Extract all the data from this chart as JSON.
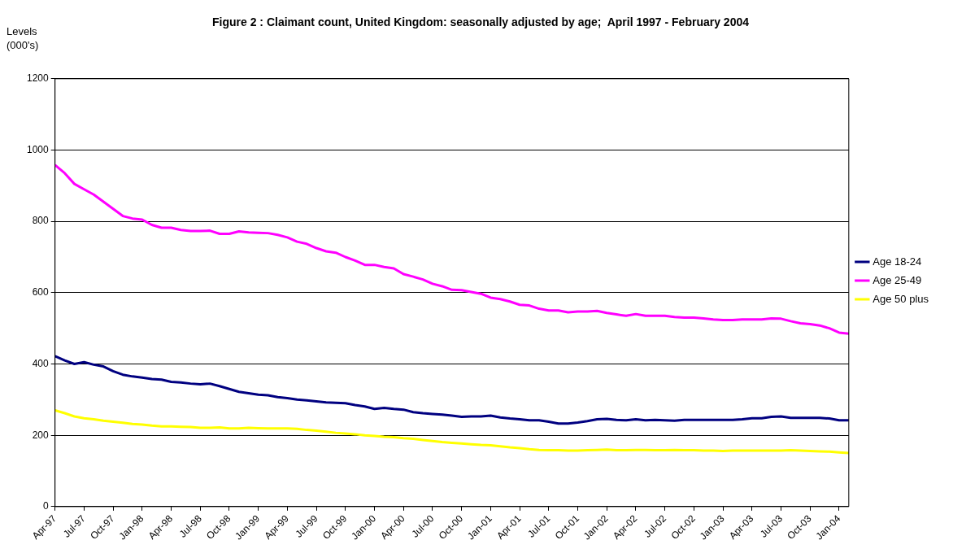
{
  "chart_data": {
    "type": "line",
    "title": "Figure 2 : Claimant count, United Kingdom: seasonally adjusted by age;  April 1997 - February 2004",
    "ylabel": "Levels (000's)",
    "categories": [
      "Apr-97",
      null,
      null,
      "Jul-97",
      null,
      null,
      "Oct-97",
      null,
      null,
      "Jan-98",
      null,
      null,
      "Apr-98",
      null,
      null,
      "Jul-98",
      null,
      null,
      "Oct-98",
      null,
      null,
      "Jan-99",
      null,
      null,
      "Apr-99",
      null,
      null,
      "Jul-99",
      null,
      null,
      "Oct-99",
      null,
      null,
      "Jan-00",
      null,
      null,
      "Apr-00",
      null,
      null,
      "Jul-00",
      null,
      null,
      "Oct-00",
      null,
      null,
      "Jan-01",
      null,
      null,
      "Apr-01",
      null,
      null,
      "Jul-01",
      null,
      null,
      "Oct-01",
      null,
      null,
      "Jan-02",
      null,
      null,
      "Apr-02",
      null,
      null,
      "Jul-02",
      null,
      null,
      "Oct-02",
      null,
      null,
      "Jan-03",
      null,
      null,
      "Apr-03",
      null,
      null,
      "Jul-03",
      null,
      null,
      "Oct-03",
      null,
      null,
      "Jan-04",
      null
    ],
    "series": [
      {
        "name": "Age 18-24",
        "color": "#000080",
        "values": [
          422,
          410,
          400,
          405,
          398,
          393,
          380,
          370,
          365,
          362,
          358,
          356,
          350,
          348,
          345,
          343,
          345,
          338,
          330,
          322,
          318,
          314,
          312,
          307,
          304,
          300,
          298,
          295,
          292,
          291,
          290,
          285,
          281,
          274,
          277,
          274,
          272,
          265,
          262,
          260,
          258,
          255,
          252,
          253,
          253,
          255,
          250,
          247,
          245,
          242,
          242,
          238,
          233,
          233,
          236,
          240,
          245,
          246,
          243,
          242,
          245,
          242,
          243,
          242,
          241,
          243,
          243,
          243,
          243,
          243,
          243,
          245,
          248,
          248,
          252,
          253,
          249,
          249,
          249,
          249,
          247,
          242,
          242
        ]
      },
      {
        "name": "Age 25-49",
        "color": "#ff00ff",
        "values": [
          958,
          935,
          905,
          890,
          875,
          855,
          835,
          815,
          808,
          805,
          790,
          782,
          782,
          776,
          773,
          773,
          774,
          765,
          765,
          772,
          769,
          768,
          767,
          762,
          755,
          743,
          737,
          725,
          716,
          712,
          700,
          690,
          678,
          678,
          672,
          668,
          652,
          645,
          637,
          625,
          618,
          608,
          607,
          602,
          597,
          586,
          582,
          575,
          566,
          564,
          555,
          550,
          550,
          545,
          547,
          547,
          549,
          543,
          539,
          535,
          540,
          535,
          535,
          535,
          532,
          530,
          530,
          528,
          525,
          523,
          523,
          525,
          525,
          525,
          528,
          527,
          520,
          514,
          512,
          508,
          500,
          488,
          485
        ]
      },
      {
        "name": "Age 50 plus",
        "color": "#ffff00",
        "values": [
          270,
          262,
          253,
          248,
          245,
          241,
          238,
          235,
          232,
          230,
          227,
          225,
          225,
          224,
          223,
          221,
          221,
          222,
          219,
          219,
          221,
          220,
          219,
          219,
          219,
          218,
          215,
          213,
          210,
          207,
          205,
          203,
          200,
          198,
          196,
          195,
          192,
          190,
          187,
          184,
          181,
          179,
          177,
          175,
          173,
          172,
          169,
          166,
          164,
          161,
          159,
          158,
          158,
          157,
          157,
          158,
          159,
          160,
          158,
          158,
          159,
          159,
          158,
          158,
          159,
          158,
          158,
          157,
          157,
          156,
          157,
          157,
          157,
          157,
          157,
          157,
          158,
          157,
          156,
          155,
          154,
          152,
          150
        ]
      }
    ],
    "ylim": [
      0,
      1200
    ],
    "yticks": [
      0,
      200,
      400,
      600,
      800,
      1000,
      1200
    ],
    "grid": "y",
    "legend": "right",
    "marker": "none",
    "line_style": "solid"
  }
}
